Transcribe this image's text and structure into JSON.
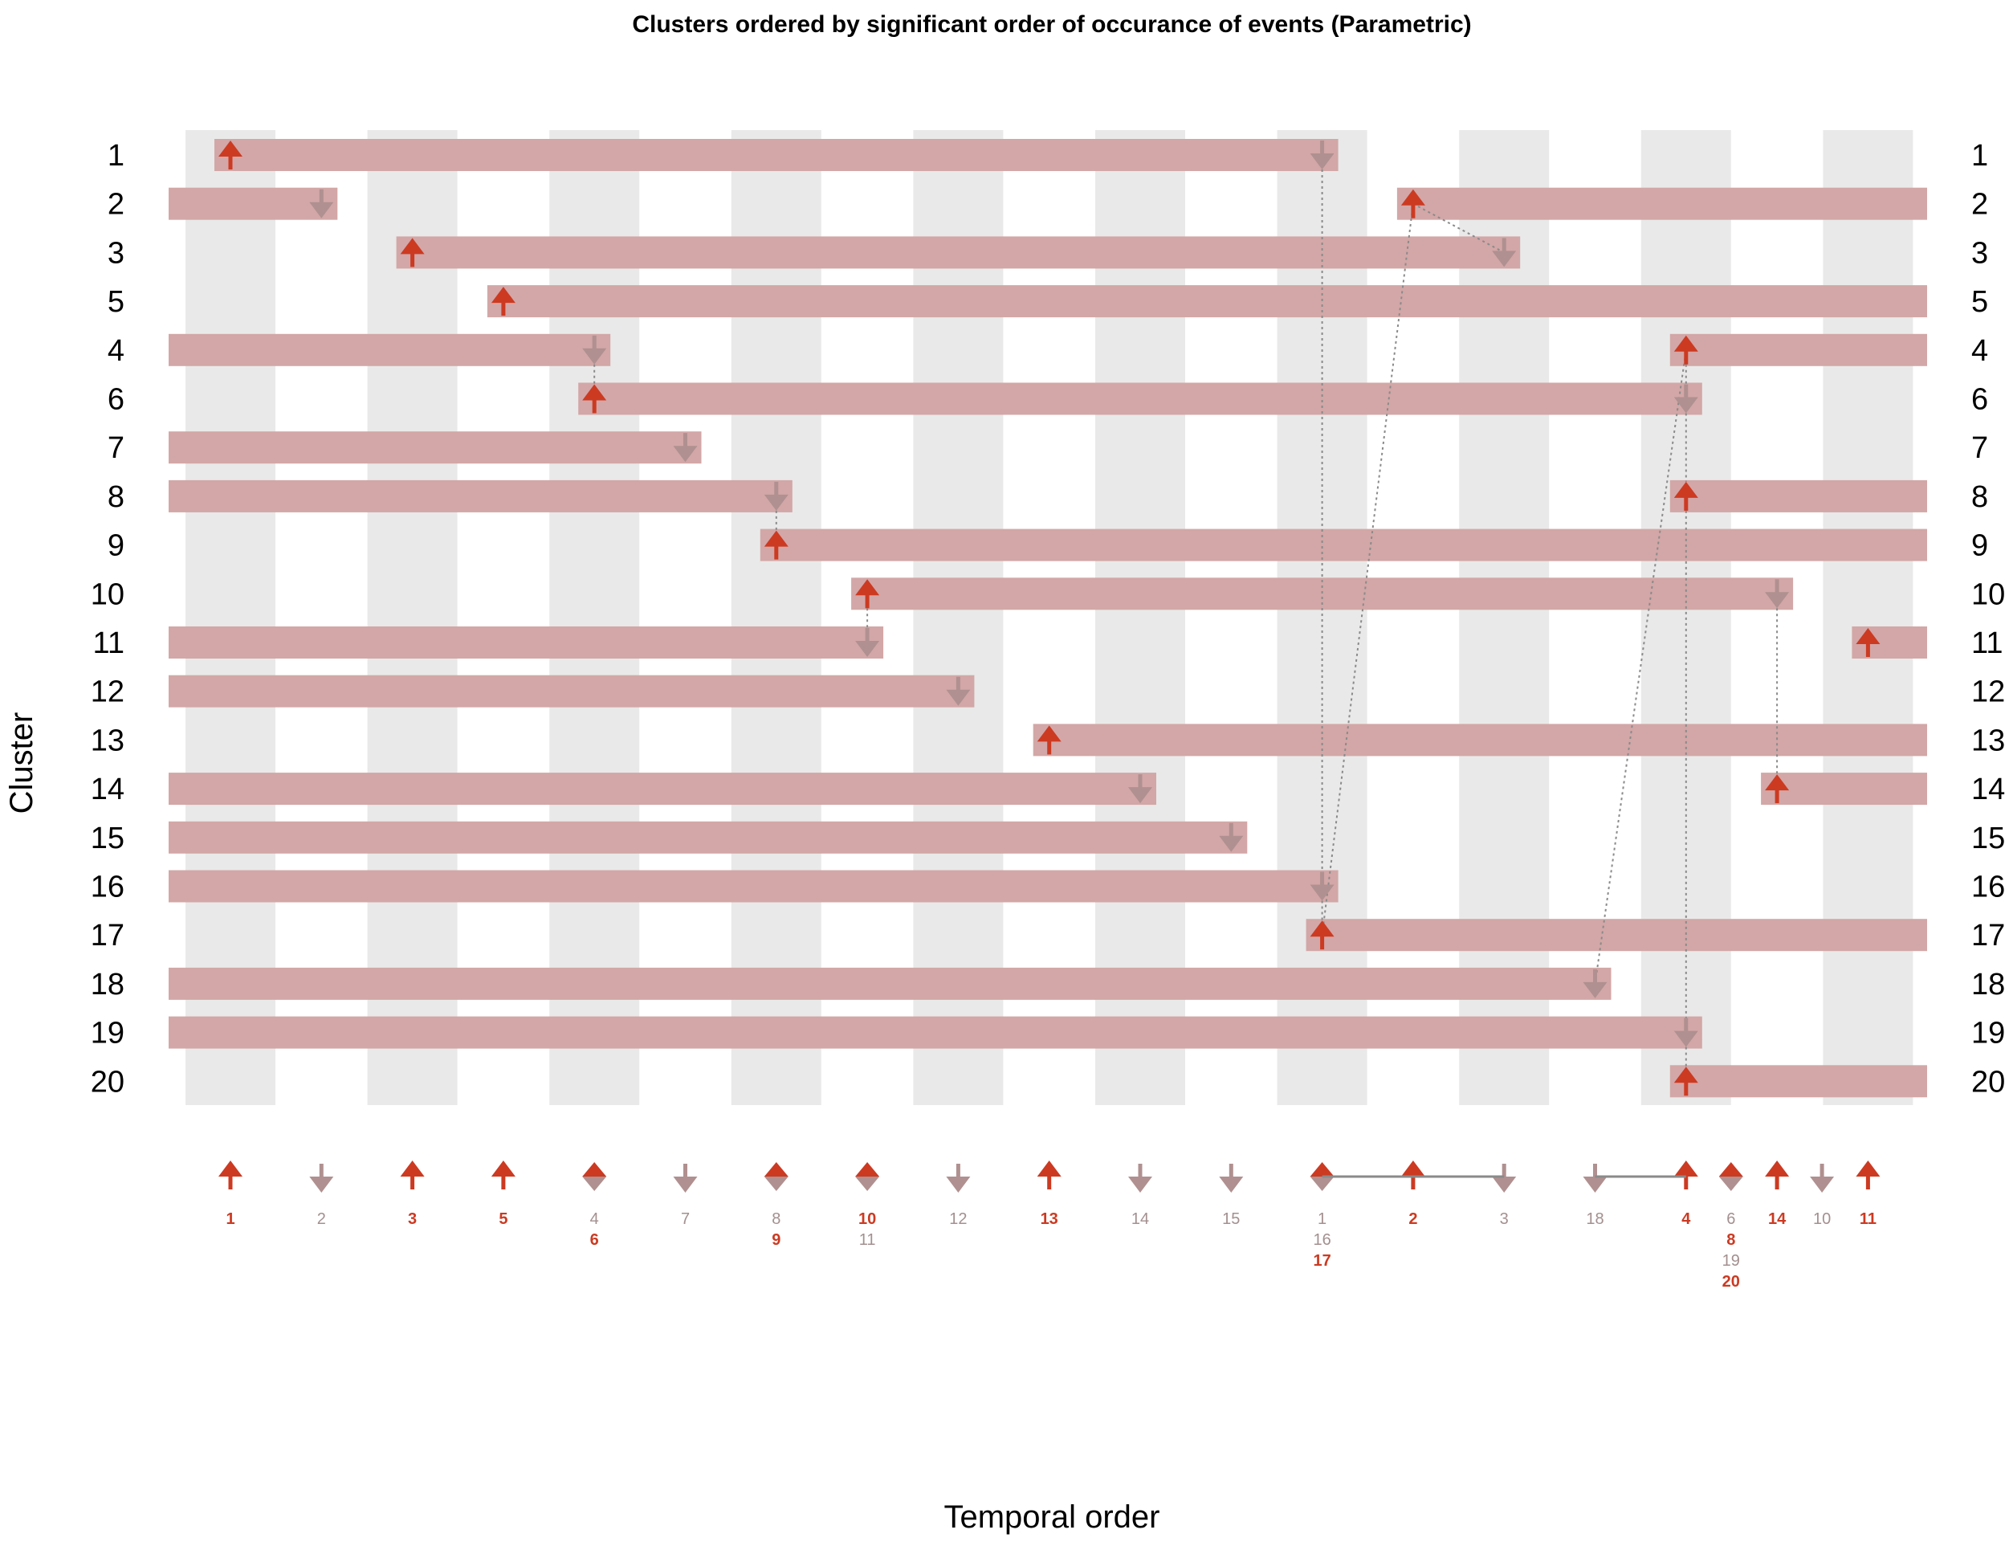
{
  "chart_data": {
    "type": "timeline",
    "title": "Clusters ordered by significant order of occurance of events (Parametric)",
    "xlabel": "Temporal order",
    "ylabel": "Cluster",
    "n_positions": 19,
    "colors": {
      "bar": "#d3a7a7",
      "up": "#cc3a22",
      "down": "#b09090",
      "stripe": "#e9e9e9",
      "connector": "#8a8a8a",
      "up_text": "#cc3a22",
      "down_text": "#a48f8f"
    },
    "clusters": [
      {
        "label": "1",
        "up": 1,
        "down": 13
      },
      {
        "label": "2",
        "up": 14,
        "down": 2
      },
      {
        "label": "3",
        "up": 3,
        "down": 15
      },
      {
        "label": "5",
        "up": 4,
        "down": null
      },
      {
        "label": "4",
        "up": 17,
        "down": 5
      },
      {
        "label": "6",
        "up": 5,
        "down": 17
      },
      {
        "label": "7",
        "up": null,
        "down": 6
      },
      {
        "label": "8",
        "up": 17,
        "down": 7
      },
      {
        "label": "9",
        "up": 7,
        "down": null
      },
      {
        "label": "10",
        "up": 8,
        "down": 18
      },
      {
        "label": "11",
        "up": 19,
        "down": 8
      },
      {
        "label": "12",
        "up": null,
        "down": 9
      },
      {
        "label": "13",
        "up": 10,
        "down": null
      },
      {
        "label": "14",
        "up": 18,
        "down": 11
      },
      {
        "label": "15",
        "up": null,
        "down": 12
      },
      {
        "label": "16",
        "up": null,
        "down": 13
      },
      {
        "label": "17",
        "up": 13,
        "down": null
      },
      {
        "label": "18",
        "up": null,
        "down": 16
      },
      {
        "label": "19",
        "up": null,
        "down": 17
      },
      {
        "label": "20",
        "up": 17,
        "down": null
      }
    ],
    "bottom_events": [
      {
        "pos": 1,
        "up": true,
        "down": false,
        "labels": [
          {
            "text": "1",
            "kind": "up"
          }
        ]
      },
      {
        "pos": 2,
        "up": false,
        "down": true,
        "labels": [
          {
            "text": "2",
            "kind": "down"
          }
        ]
      },
      {
        "pos": 3,
        "up": true,
        "down": false,
        "labels": [
          {
            "text": "3",
            "kind": "up"
          }
        ]
      },
      {
        "pos": 4,
        "up": true,
        "down": false,
        "labels": [
          {
            "text": "5",
            "kind": "up"
          }
        ]
      },
      {
        "pos": 5,
        "up": true,
        "down": true,
        "labels": [
          {
            "text": "4",
            "kind": "down"
          },
          {
            "text": "6",
            "kind": "up"
          }
        ]
      },
      {
        "pos": 6,
        "up": false,
        "down": true,
        "labels": [
          {
            "text": "7",
            "kind": "down"
          }
        ]
      },
      {
        "pos": 7,
        "up": true,
        "down": true,
        "labels": [
          {
            "text": "8",
            "kind": "down"
          },
          {
            "text": "9",
            "kind": "up"
          }
        ]
      },
      {
        "pos": 8,
        "up": true,
        "down": true,
        "labels": [
          {
            "text": "10",
            "kind": "up"
          },
          {
            "text": "11",
            "kind": "down"
          }
        ]
      },
      {
        "pos": 9,
        "up": false,
        "down": true,
        "labels": [
          {
            "text": "12",
            "kind": "down"
          }
        ]
      },
      {
        "pos": 10,
        "up": true,
        "down": false,
        "labels": [
          {
            "text": "13",
            "kind": "up"
          }
        ]
      },
      {
        "pos": 11,
        "up": false,
        "down": true,
        "labels": [
          {
            "text": "14",
            "kind": "down"
          }
        ]
      },
      {
        "pos": 12,
        "up": false,
        "down": true,
        "labels": [
          {
            "text": "15",
            "kind": "down"
          }
        ]
      },
      {
        "pos": 13,
        "up": true,
        "down": true,
        "labels": [
          {
            "text": "1",
            "kind": "down"
          },
          {
            "text": "16",
            "kind": "down"
          },
          {
            "text": "17",
            "kind": "up"
          }
        ]
      },
      {
        "pos": 14,
        "up": true,
        "down": false,
        "labels": [
          {
            "text": "2",
            "kind": "up"
          }
        ]
      },
      {
        "pos": 15,
        "up": false,
        "down": true,
        "labels": [
          {
            "text": "3",
            "kind": "down"
          }
        ]
      },
      {
        "pos": 16,
        "up": false,
        "down": true,
        "labels": [
          {
            "text": "18",
            "kind": "down"
          }
        ]
      },
      {
        "pos": 17,
        "up": true,
        "down": false,
        "labels": [
          {
            "text": "4",
            "kind": "up"
          }
        ]
      },
      {
        "pos": 17,
        "up": true,
        "down": true,
        "labels": [
          {
            "text": "6",
            "kind": "down"
          },
          {
            "text": "8",
            "kind": "up"
          },
          {
            "text": "19",
            "kind": "down"
          },
          {
            "text": "20",
            "kind": "up"
          }
        ]
      },
      {
        "pos": 18,
        "up": true,
        "down": false,
        "labels": [
          {
            "text": "14",
            "kind": "up"
          }
        ]
      },
      {
        "pos": 18,
        "up": false,
        "down": true,
        "labels": [
          {
            "text": "10",
            "kind": "down"
          }
        ]
      },
      {
        "pos": 19,
        "up": true,
        "down": false,
        "labels": [
          {
            "text": "11",
            "kind": "up"
          }
        ]
      }
    ],
    "bottom_connectors": [
      [
        13,
        15
      ],
      [
        16,
        17
      ]
    ]
  }
}
